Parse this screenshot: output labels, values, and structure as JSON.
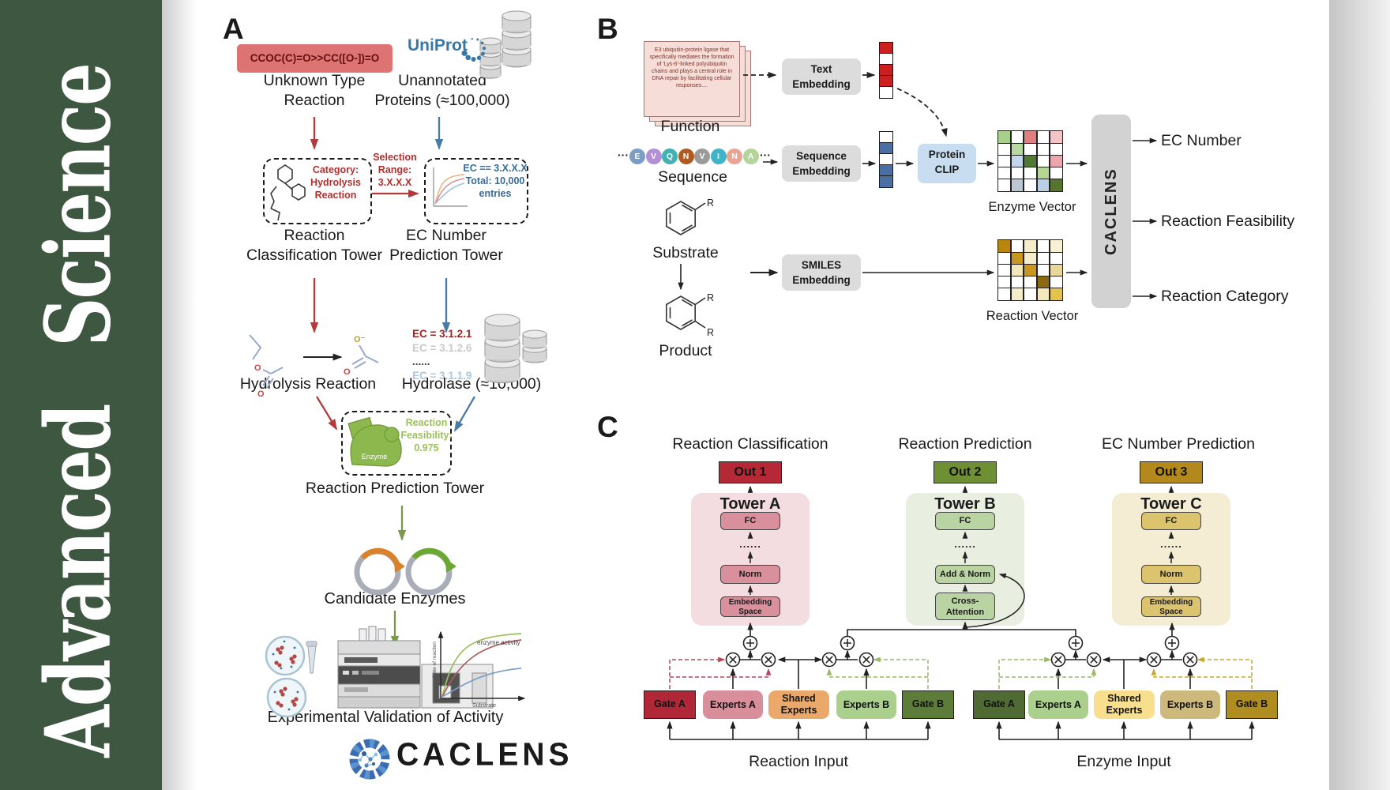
{
  "sidebar": {
    "journal": "Advanced Science"
  },
  "palette": {
    "journal_green": "#3e5741",
    "arrow_red": "#b23a3a",
    "arrow_blue": "#4a7ba6",
    "arrow_green": "#7a9a4a",
    "red_text": "#b03030",
    "blue_text": "#3a6b96",
    "green_text": "#9cbf5e",
    "smiles_bg": "#dd7373",
    "smiles_text": "#641111",
    "uniprot_blue": "#3679a8",
    "embed_box_gray": "#dcdcdc",
    "clip_blue": "#c8ddf0",
    "caclens_bar_gray": "#d2d2d2"
  },
  "panelA": {
    "label": "A",
    "smiles": "CCOC(C)=O>>CC([O-])=O",
    "unknown_reaction": [
      "Unknown Type",
      "Reaction"
    ],
    "uniprot": "UniProt",
    "unannotated": [
      "Unannotated",
      "Proteins (≈100,000)"
    ],
    "category_box": [
      "Category:",
      "Hydrolysis",
      "Reaction"
    ],
    "selection": [
      "Selection",
      "Range:",
      "3.X.X.X"
    ],
    "ec_box": [
      "EC == 3.X.X.X",
      "Total: 10,000",
      "entries"
    ],
    "classification_tower": [
      "Reaction",
      "Classification Tower"
    ],
    "ec_tower": [
      "EC Number",
      "Prediction Tower"
    ],
    "hydrolysis_reaction": "Hydrolysis Reaction",
    "ec_list": [
      {
        "text": "EC = 3.1.2.1",
        "color": "#9c2323"
      },
      {
        "text": "EC = 3.1.2.6",
        "color": "#c9c9c9"
      },
      {
        "text": "......",
        "color": "#444444"
      },
      {
        "text": "EC = 3.1.1.9",
        "color": "#a9c6e2"
      }
    ],
    "hydrolase": "Hydrolase (≈10,000)",
    "feasibility_box": [
      "Reaction",
      "Feasibility:",
      "0.975"
    ],
    "enzyme_blob_label": "Enzyme",
    "prediction_tower": "Reaction Prediction Tower",
    "candidate_enzymes": "Candidate Enzymes",
    "validation": "Experimental Validation of Activity",
    "activity_plot": {
      "title": "enzyme activity",
      "ylabel": "Rate of reaction",
      "xlabel": "Substrate"
    },
    "atoms": {
      "o": "O",
      "o_minus": "O⁻"
    },
    "logo_text": "CACLENS"
  },
  "panelB": {
    "label": "B",
    "function_card": "E3 ubiquitin-protein ligase that specifically mediates the formation of 'Lys-6'-linked polyubiquitin chains and plays a central role in DNA repair by facilitating cellular responses....",
    "function_label": "Function",
    "ellipsis": "···",
    "sequence_label": "Sequence",
    "sequence_residues": [
      {
        "letter": "E",
        "color": "#7b9ec4"
      },
      {
        "letter": "V",
        "color": "#b48fd9"
      },
      {
        "letter": "Q",
        "color": "#3fb3b3"
      },
      {
        "letter": "N",
        "color": "#b05a20"
      },
      {
        "letter": "V",
        "color": "#9a9a9a"
      },
      {
        "letter": "I",
        "color": "#3fb3c9"
      },
      {
        "letter": "N",
        "color": "#eba393"
      },
      {
        "letter": "A",
        "color": "#b5d49a"
      }
    ],
    "substrate_label": "Substrate",
    "product_label": "Product",
    "r_label": "R",
    "text_embedding": [
      "Text",
      "Embedding"
    ],
    "sequence_embedding": [
      "Sequence",
      "Embedding"
    ],
    "smiles_embedding": [
      "SMILES",
      "Embedding"
    ],
    "protein_clip": [
      "Protein",
      "CLIP"
    ],
    "text_vector": [
      "#cc1f1f",
      "#ffffff",
      "#cc1f1f",
      "#cc1f1f",
      "#ffffff"
    ],
    "seq_vector": [
      "#ffffff",
      "#4a6fa5",
      "#ffffff",
      "#4a6fa5",
      "#4a6fa5"
    ],
    "enzyme_vector_label": "Enzyme Vector",
    "reaction_vector_label": "Reaction Vector",
    "enzyme_grid": [
      "#a9cf8c",
      "#ffffff",
      "#e07f7f",
      "#ffffff",
      "#f2c6c6",
      "#ffffff",
      "#b7d8a0",
      "#ffffff",
      "#ffffff",
      "#ffffff",
      "#ffffff",
      "#c3d6ec",
      "#4f7a33",
      "#ffffff",
      "#eba6ae",
      "#ffffff",
      "#ffffff",
      "#ffffff",
      "#b4d796",
      "#ffffff",
      "#ffffff",
      "#bcc7d4",
      "#ffffff",
      "#b8cfe8",
      "#55742e"
    ],
    "reaction_grid": [
      "#b8860b",
      "#ffffff",
      "#f5ecca",
      "#ffffff",
      "#f8f0d3",
      "#ffffff",
      "#c9961e",
      "#f5ecca",
      "#ffffff",
      "#ffffff",
      "#ffffff",
      "#f2e6bb",
      "#c9961e",
      "#ffffff",
      "#e9d69c",
      "#ffffff",
      "#ffffff",
      "#ffffff",
      "#8a6a10",
      "#ffffff",
      "#ffffff",
      "#f5ecca",
      "#ffffff",
      "#f5e8bb",
      "#e3c24d"
    ],
    "caclens_bar": "CACLENS",
    "outputs": [
      "EC Number",
      "Reaction Feasibility",
      "Reaction Category"
    ]
  },
  "panelC": {
    "label": "C",
    "towers": [
      {
        "title": "Reaction Classification",
        "out": "Out 1",
        "out_bg": "#b52936",
        "name": "Tower A",
        "bg": "#f3dde1",
        "box": "#d9909c",
        "fc": "FC",
        "dots": "......",
        "mid": "Norm",
        "bottom": [
          "Embedding",
          "Space"
        ]
      },
      {
        "title": "Reaction Prediction",
        "out": "Out 2",
        "out_bg": "#6e8f33",
        "name": "Tower B",
        "bg": "#e8efe0",
        "box": "#b9d3a2",
        "fc": "FC",
        "dots": "......",
        "mid": "Add & Norm",
        "bottom": [
          "Cross-",
          "Attention"
        ]
      },
      {
        "title": "EC Number Prediction",
        "out": "Out 3",
        "out_bg": "#b3881c",
        "name": "Tower C",
        "bg": "#f4edd4",
        "box": "#dcc36e",
        "fc": "FC",
        "dots": "......",
        "mid": "Norm",
        "bottom": [
          "Embedding",
          "Space"
        ]
      }
    ],
    "moe": [
      {
        "input": "Reaction Input",
        "boxes": [
          {
            "label": "Gate A",
            "color": "#b02738"
          },
          {
            "label": "Experts A",
            "color": "#d98f9b"
          },
          {
            "label": "Shared Experts",
            "color": "#eaa96b"
          },
          {
            "label": "Experts B",
            "color": "#abcf8d"
          },
          {
            "label": "Gate B",
            "color": "#5d7c39"
          }
        ]
      },
      {
        "input": "Enzyme Input",
        "boxes": [
          {
            "label": "Gate A",
            "color": "#4f6b33"
          },
          {
            "label": "Experts A",
            "color": "#abcf8d"
          },
          {
            "label": "Shared Experts",
            "color": "#f7df8e"
          },
          {
            "label": "Experts B",
            "color": "#cdb97c"
          },
          {
            "label": "Gate B",
            "color": "#b08d20"
          }
        ]
      }
    ]
  }
}
